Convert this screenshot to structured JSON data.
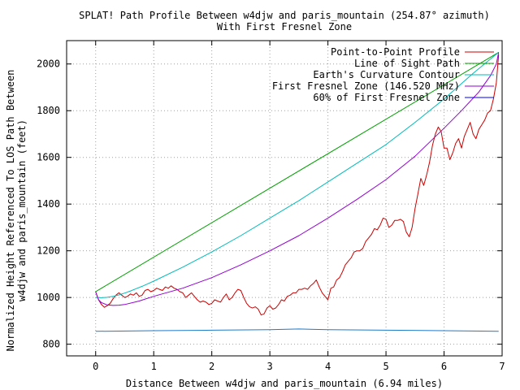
{
  "chart_data": {
    "type": "line",
    "title": "SPLAT! Path Profile Between w4djw and paris_mountain (254.87° azimuth)",
    "subtitle": "With First Fresnel Zone",
    "xlabel": "Distance Between w4djw and paris_mountain (6.94 miles)",
    "ylabel_line1": "Normalized Height Referenced To LOS Path Between",
    "ylabel_line2": "w4djw and paris_mountain (feet)",
    "xlim": [
      -0.5,
      7.0
    ],
    "ylim": [
      750,
      2100
    ],
    "xticks": [
      0,
      1,
      2,
      3,
      4,
      5,
      6,
      7
    ],
    "yticks": [
      800,
      1000,
      1200,
      1400,
      1600,
      1800,
      2000
    ],
    "grid": true,
    "legend_position": "top-right",
    "series": [
      {
        "name": "Point-to-Point Profile",
        "color": "#cc0000",
        "x": [
          0.0,
          0.05,
          0.1,
          0.15,
          0.2,
          0.25,
          0.3,
          0.35,
          0.4,
          0.45,
          0.5,
          0.55,
          0.6,
          0.65,
          0.7,
          0.75,
          0.8,
          0.85,
          0.9,
          0.95,
          1.0,
          1.05,
          1.1,
          1.15,
          1.2,
          1.25,
          1.3,
          1.35,
          1.4,
          1.45,
          1.5,
          1.55,
          1.6,
          1.65,
          1.7,
          1.75,
          1.8,
          1.85,
          1.9,
          1.95,
          2.0,
          2.05,
          2.1,
          2.15,
          2.2,
          2.25,
          2.3,
          2.35,
          2.4,
          2.45,
          2.5,
          2.55,
          2.6,
          2.65,
          2.7,
          2.75,
          2.8,
          2.85,
          2.9,
          2.95,
          3.0,
          3.05,
          3.1,
          3.15,
          3.2,
          3.25,
          3.3,
          3.35,
          3.4,
          3.45,
          3.5,
          3.55,
          3.6,
          3.65,
          3.7,
          3.75,
          3.8,
          3.85,
          3.9,
          3.95,
          4.0,
          4.05,
          4.1,
          4.15,
          4.2,
          4.25,
          4.3,
          4.35,
          4.4,
          4.45,
          4.5,
          4.55,
          4.6,
          4.65,
          4.7,
          4.75,
          4.8,
          4.85,
          4.9,
          4.95,
          5.0,
          5.05,
          5.1,
          5.15,
          5.2,
          5.25,
          5.3,
          5.35,
          5.4,
          5.45,
          5.5,
          5.55,
          5.6,
          5.65,
          5.7,
          5.75,
          5.8,
          5.85,
          5.9,
          5.95,
          6.0,
          6.05,
          6.1,
          6.15,
          6.2,
          6.25,
          6.3,
          6.35,
          6.4,
          6.45,
          6.5,
          6.55,
          6.6,
          6.65,
          6.7,
          6.75,
          6.8,
          6.85,
          6.9,
          6.94
        ],
        "y": [
          1025,
          990,
          970,
          958,
          965,
          975,
          995,
          1010,
          1020,
          1010,
          1000,
          1005,
          1015,
          1010,
          1020,
          1005,
          1010,
          1030,
          1035,
          1025,
          1030,
          1040,
          1035,
          1030,
          1045,
          1040,
          1050,
          1040,
          1035,
          1025,
          1020,
          1000,
          1010,
          1020,
          1005,
          990,
          980,
          985,
          980,
          970,
          975,
          990,
          985,
          980,
          1000,
          1015,
          990,
          1000,
          1020,
          1035,
          1030,
          1000,
          975,
          960,
          955,
          960,
          950,
          925,
          930,
          955,
          965,
          950,
          955,
          970,
          990,
          985,
          1005,
          1010,
          1020,
          1020,
          1035,
          1035,
          1040,
          1035,
          1050,
          1060,
          1075,
          1045,
          1020,
          1005,
          990,
          1040,
          1045,
          1075,
          1085,
          1110,
          1140,
          1155,
          1170,
          1195,
          1200,
          1200,
          1210,
          1240,
          1255,
          1270,
          1295,
          1290,
          1310,
          1340,
          1335,
          1300,
          1310,
          1330,
          1330,
          1335,
          1325,
          1280,
          1260,
          1300,
          1380,
          1445,
          1510,
          1480,
          1525,
          1580,
          1650,
          1700,
          1730,
          1710,
          1640,
          1640,
          1590,
          1620,
          1660,
          1680,
          1640,
          1690,
          1720,
          1750,
          1700,
          1680,
          1720,
          1740,
          1760,
          1790,
          1800,
          1850,
          1920,
          2040
        ]
      },
      {
        "name": "Line of Sight Path",
        "color": "#00a000",
        "x": [
          0.0,
          6.94
        ],
        "y": [
          1025,
          2050
        ]
      },
      {
        "name": "Earth's Curvature Contour",
        "color": "#00bbbb",
        "x": [
          0.0,
          0.1,
          0.2,
          0.3,
          0.4,
          0.5,
          0.6,
          0.7,
          0.8,
          0.9,
          1.0,
          1.5,
          2.0,
          2.5,
          3.0,
          3.5,
          4.0,
          4.5,
          5.0,
          5.5,
          6.0,
          6.5,
          6.94
        ],
        "y": [
          1000,
          999,
          1001,
          1005,
          1011,
          1019,
          1028,
          1038,
          1048,
          1059,
          1070,
          1130,
          1195,
          1265,
          1340,
          1415,
          1495,
          1575,
          1655,
          1750,
          1850,
          1960,
          2050
        ]
      },
      {
        "name": "First Fresnel Zone (146.520 MHz)",
        "color": "#9400d3",
        "x": [
          0.0,
          0.05,
          0.1,
          0.2,
          0.3,
          0.4,
          0.5,
          0.75,
          1.0,
          1.5,
          2.0,
          2.5,
          3.0,
          3.5,
          4.0,
          4.5,
          5.0,
          5.5,
          6.0,
          6.3,
          6.6,
          6.8,
          6.9,
          6.94
        ],
        "y": [
          1025,
          990,
          978,
          968,
          966,
          967,
          970,
          985,
          1005,
          1040,
          1085,
          1140,
          1200,
          1265,
          1340,
          1420,
          1505,
          1605,
          1725,
          1800,
          1880,
          1950,
          2000,
          2050
        ]
      },
      {
        "name": "60% of First Fresnel Zone",
        "color": "#0000ff",
        "x": [],
        "y": []
      },
      {
        "name": "",
        "color": "#1f7ac8",
        "x": [
          0.0,
          1.0,
          2.0,
          3.0,
          3.5,
          4.0,
          5.0,
          6.0,
          6.94
        ],
        "y": [
          855,
          858,
          860,
          862,
          865,
          862,
          860,
          858,
          855
        ]
      }
    ]
  }
}
